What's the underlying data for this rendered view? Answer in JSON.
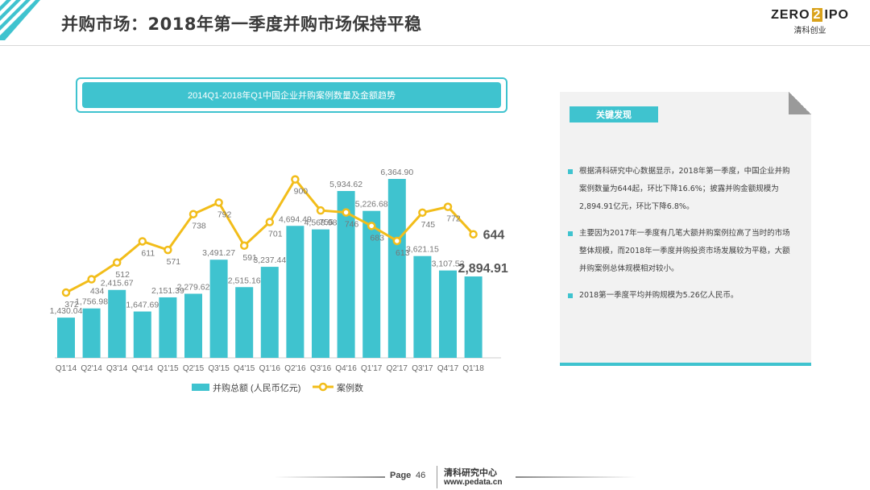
{
  "header": {
    "title": "并购市场：2018年第一季度并购市场保持平稳",
    "logo_main": "ZERO",
    "logo_mid": "2",
    "logo_end": "IPO",
    "logo_sub": "清科创业"
  },
  "chart_data": {
    "type": "bar",
    "title": "2014Q1-2018年Q1中国企业并购案例数量及金额趋势",
    "categories": [
      "Q1'14",
      "Q2'14",
      "Q3'14",
      "Q4'14",
      "Q1'15",
      "Q2'15",
      "Q3'15",
      "Q4'15",
      "Q1'16",
      "Q2'16",
      "Q3'16",
      "Q4'16",
      "Q1'17",
      "Q2'17",
      "Q3'17",
      "Q4'17",
      "Q1'18"
    ],
    "series": [
      {
        "name": "并购总额 (人民币亿元)",
        "type": "bar",
        "color": "#3fc3cf",
        "values": [
          1430.04,
          1756.98,
          2415.67,
          1647.69,
          2151.39,
          2279.62,
          3491.27,
          2515.16,
          3237.44,
          4694.49,
          4568.98,
          5934.62,
          5226.68,
          6364.9,
          3621.15,
          3107.52,
          2894.91
        ],
        "labels": [
          "1,430.04",
          "1,756.98",
          "2,415.67",
          "1,647.69",
          "2,151.39",
          "2,279.62",
          "3,491.27",
          "2,515.16",
          "3,237.44",
          "4,694.49",
          "4,568.98",
          "5,934.62",
          "5,226.68",
          "6,364.90",
          "3,621.15",
          "3,107.52",
          "2,894.91"
        ]
      },
      {
        "name": "案例数",
        "type": "line",
        "color": "#f2bd1a",
        "values": [
          372,
          434,
          512,
          611,
          571,
          738,
          792,
          591,
          701,
          900,
          755,
          746,
          683,
          613,
          745,
          772,
          644
        ],
        "labels": [
          "372",
          "434",
          "512",
          "611",
          "571",
          "738",
          "792",
          "591",
          "701",
          "900",
          "755",
          "746",
          "683",
          "613",
          "745",
          "772",
          "644"
        ]
      }
    ],
    "legend": "bottom"
  },
  "panel": {
    "tag": "关键发现",
    "bullets": [
      "根据清科研究中心数据显示，2018年第一季度，中国企业并购案例数量为644起，环比下降16.6%；披露并购金额规模为2,894.91亿元，环比下降6.8%。",
      "主要因为2017年一季度有几笔大额并购案例拉高了当时的市场整体规模，而2018年一季度并购投资市场发展较为平稳，大额并购案例总体规模相对较小。",
      "2018第一季度平均并购规模为5.26亿人民币。"
    ]
  },
  "footer": {
    "page_label": "Page",
    "page_number": "46",
    "org": "清科研究中心",
    "url": "www.pedata.cn"
  }
}
